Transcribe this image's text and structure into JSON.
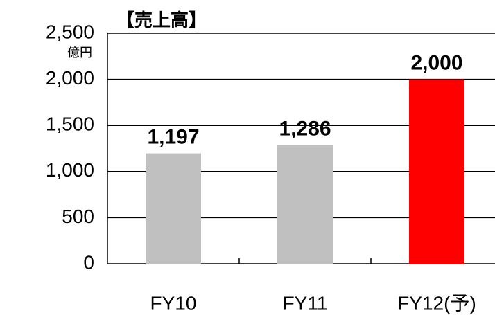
{
  "chart_data": {
    "type": "bar",
    "title": "【売上高】",
    "y_unit": "億円",
    "categories": [
      "FY10",
      "FY11",
      "FY12(予)"
    ],
    "values": [
      1197,
      1286,
      2000
    ],
    "value_labels": [
      "1,197",
      "1,286",
      "2,000"
    ],
    "colors": [
      "#c0c0c0",
      "#c0c0c0",
      "#ff0000"
    ],
    "ylim": [
      0,
      2500
    ],
    "yticks": [
      0,
      500,
      {
        "value": 1000,
        "label": "1,000"
      },
      {
        "value": 1500,
        "label": "1,500"
      },
      {
        "value": 2000,
        "label": "2,000"
      },
      {
        "value": 2500,
        "label": "2,500"
      }
    ],
    "grid": true
  }
}
